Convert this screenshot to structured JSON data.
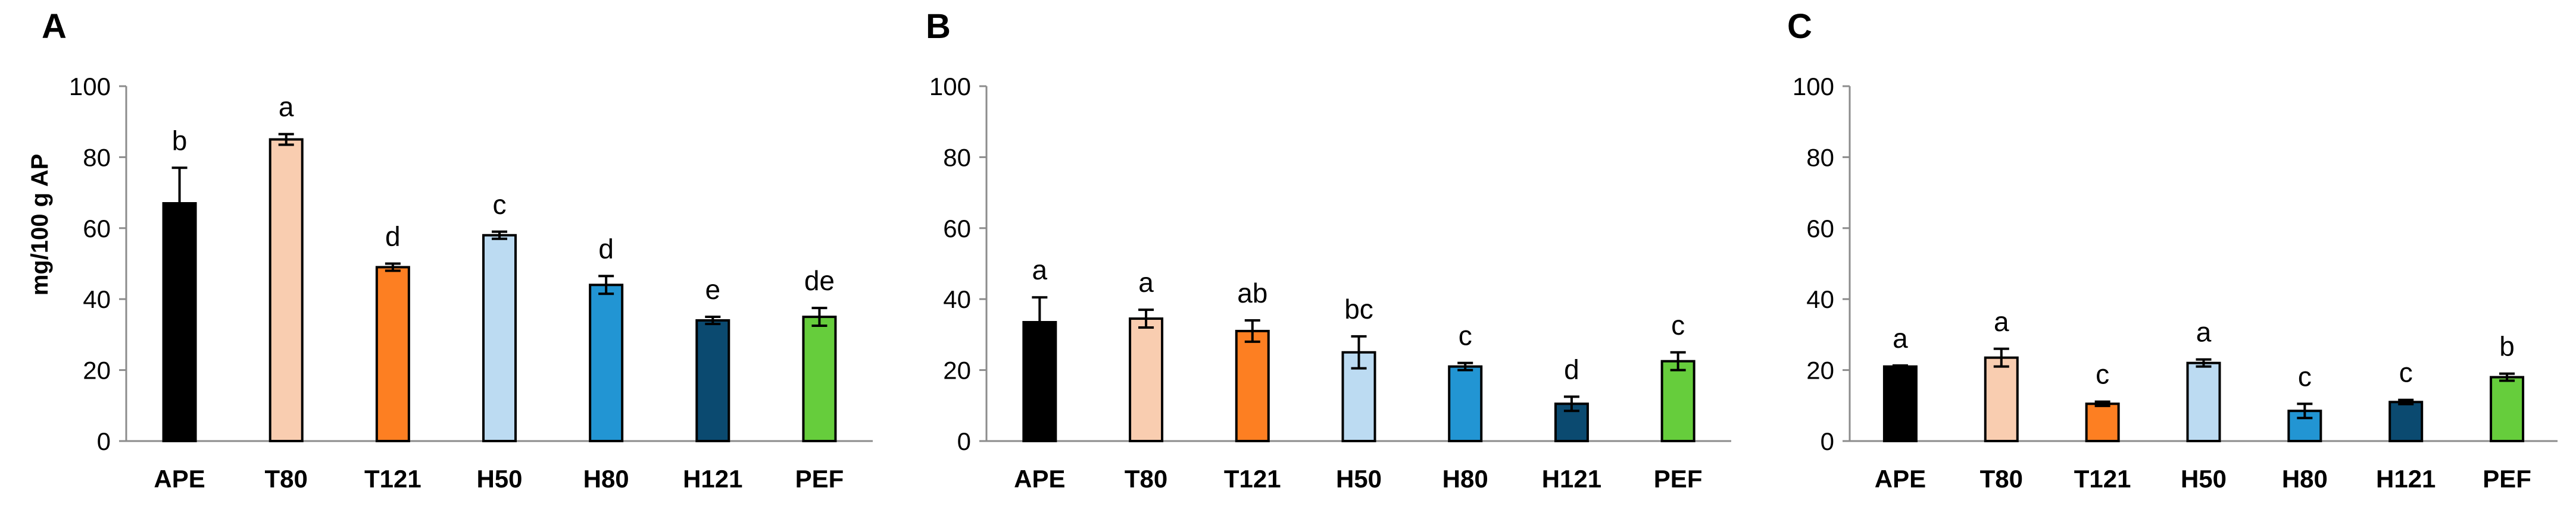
{
  "ylabel": "mg/100 g AP",
  "colors": {
    "APE": "#000000",
    "T80": "#f9cdb0",
    "T121": "#fd7f22",
    "H50": "#bcdbf2",
    "H80": "#2295d3",
    "H121": "#0b4a70",
    "PEF": "#66cd3c"
  },
  "chart_data": [
    {
      "type": "bar",
      "panel": "A",
      "categories": [
        "APE",
        "T80",
        "T121",
        "H50",
        "H80",
        "H121",
        "PEF"
      ],
      "values": [
        67,
        85,
        49,
        58,
        44,
        34,
        35
      ],
      "errors": [
        10,
        1.5,
        1,
        1,
        2.5,
        1,
        2.5
      ],
      "letters": [
        "b",
        "a",
        "d",
        "c",
        "d",
        "e",
        "de"
      ],
      "ylabel": "mg/100 g AP",
      "ylim": [
        0,
        100
      ],
      "yticks": [
        0,
        20,
        40,
        60,
        80,
        100
      ]
    },
    {
      "type": "bar",
      "panel": "B",
      "categories": [
        "APE",
        "T80",
        "T121",
        "H50",
        "H80",
        "H121",
        "PEF"
      ],
      "values": [
        33.5,
        34.5,
        31,
        25,
        21,
        10.5,
        22.5
      ],
      "errors": [
        7,
        2.5,
        3,
        4.5,
        1,
        2,
        2.5
      ],
      "letters": [
        "a",
        "a",
        "ab",
        "bc",
        "c",
        "d",
        "c"
      ],
      "ylim": [
        0,
        100
      ],
      "yticks": [
        0,
        20,
        40,
        60,
        80,
        100
      ]
    },
    {
      "type": "bar",
      "panel": "C",
      "categories": [
        "APE",
        "T80",
        "T121",
        "H50",
        "H80",
        "H121",
        "PEF"
      ],
      "values": [
        21,
        23.5,
        10.5,
        22,
        8.5,
        11,
        18
      ],
      "errors": [
        0.3,
        2.5,
        0.6,
        1,
        2,
        0.6,
        1
      ],
      "letters": [
        "a",
        "a",
        "c",
        "a",
        "c",
        "c",
        "b"
      ],
      "ylim": [
        0,
        100
      ],
      "yticks": [
        0,
        20,
        40,
        60,
        80,
        100
      ]
    }
  ]
}
